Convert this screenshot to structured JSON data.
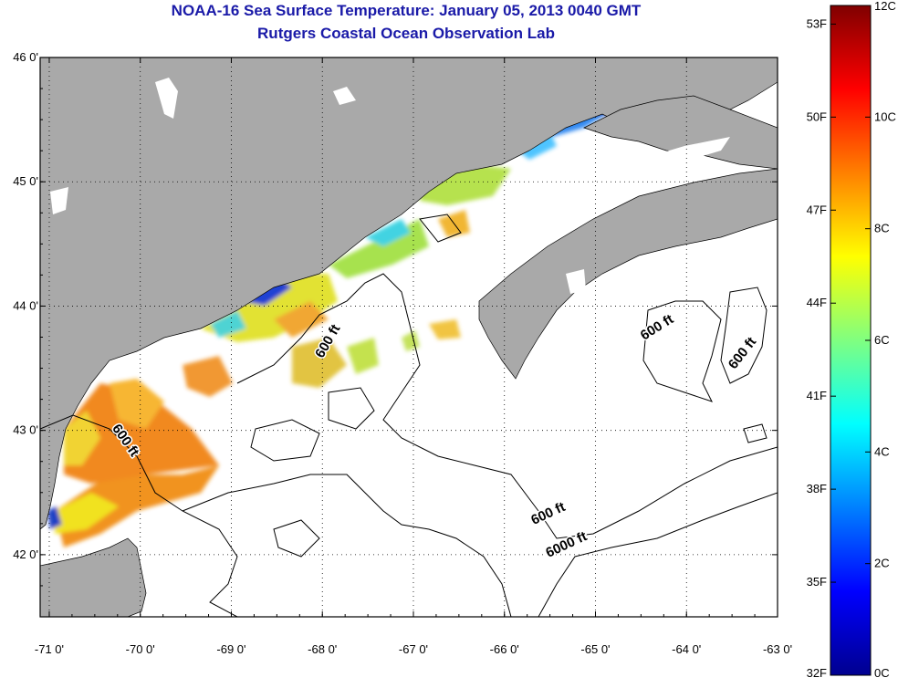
{
  "header": {
    "title": "NOAA-16 Sea Surface Temperature:  January 05, 2013 0040 GMT",
    "subtitle": "Rutgers Coastal Ocean Observation Lab"
  },
  "map": {
    "lon_range": [
      -71.1,
      -63.0
    ],
    "lat_range": [
      41.5,
      46.0
    ],
    "lon_ticks": [
      {
        "value": -71,
        "label": "-71 0'"
      },
      {
        "value": -70,
        "label": "-70 0'"
      },
      {
        "value": -69,
        "label": "-69 0'"
      },
      {
        "value": -68,
        "label": "-68 0'"
      },
      {
        "value": -67,
        "label": "-67 0'"
      },
      {
        "value": -66,
        "label": "-66 0'"
      },
      {
        "value": -65,
        "label": "-65 0'"
      },
      {
        "value": -64,
        "label": "-64 0'"
      },
      {
        "value": -63,
        "label": "-63 0'"
      }
    ],
    "lat_ticks": [
      {
        "value": 46,
        "label": "46 0'"
      },
      {
        "value": 45,
        "label": "45 0'"
      },
      {
        "value": 44,
        "label": "44 0'"
      },
      {
        "value": 43,
        "label": "43 0'"
      },
      {
        "value": 42,
        "label": "42 0'"
      }
    ],
    "grid": "dotted",
    "land_color": "#a9a9a9",
    "water_color": "#ffffff",
    "contour_labels": [
      {
        "text": "600 ft",
        "lon": -67.9,
        "lat": 43.7,
        "angle": -60
      },
      {
        "text": "600 ft",
        "lon": -70.2,
        "lat": 42.9,
        "angle": 55
      },
      {
        "text": "600 ft",
        "lon": -64.3,
        "lat": 43.8,
        "angle": -32
      },
      {
        "text": "600 ft",
        "lon": -63.35,
        "lat": 43.6,
        "angle": -52
      },
      {
        "text": "600 ft",
        "lon": -65.5,
        "lat": 42.3,
        "angle": -25
      },
      {
        "text": "6000 ft",
        "lon": -65.3,
        "lat": 42.05,
        "angle": -25
      }
    ]
  },
  "colorbar": {
    "min_c": 0,
    "max_c": 12,
    "celsius_ticks": [
      {
        "value": 0,
        "label": "0C"
      },
      {
        "value": 2,
        "label": "2C"
      },
      {
        "value": 4,
        "label": "4C"
      },
      {
        "value": 6,
        "label": "6C"
      },
      {
        "value": 8,
        "label": "8C"
      },
      {
        "value": 10,
        "label": "10C"
      },
      {
        "value": 12,
        "label": "12C"
      }
    ],
    "fahrenheit_ticks": [
      {
        "value": 32,
        "label": "32F"
      },
      {
        "value": 35,
        "label": "35F"
      },
      {
        "value": 38,
        "label": "38F"
      },
      {
        "value": 41,
        "label": "41F"
      },
      {
        "value": 44,
        "label": "44F"
      },
      {
        "value": 47,
        "label": "47F"
      },
      {
        "value": 50,
        "label": "50F"
      },
      {
        "value": 53,
        "label": "53F"
      }
    ],
    "colors": [
      "#00008f",
      "#0000ff",
      "#0080ff",
      "#00ffff",
      "#80ff80",
      "#ffff00",
      "#ff8000",
      "#ff0000",
      "#800000"
    ]
  }
}
